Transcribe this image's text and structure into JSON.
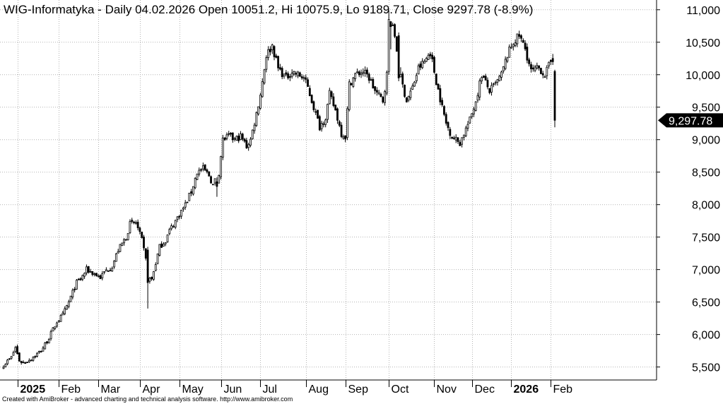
{
  "chart_data": {
    "type": "candlestick",
    "title": "WIG-Informatyka - Daily 04.02.2026 Open 10051.2, Hi 10075.9, Lo 9189.71, Close 9297.78 (-8.9%)",
    "footer": "Created with AmiBroker - advanced charting and technical analysis software. http://www.amibroker.com",
    "ylim": [
      5300,
      11150
    ],
    "y_ticks": [
      {
        "value": 5500,
        "label": "5,500"
      },
      {
        "value": 6000,
        "label": "6,000"
      },
      {
        "value": 6500,
        "label": "6,500"
      },
      {
        "value": 7000,
        "label": "7,000"
      },
      {
        "value": 7500,
        "label": "7,500"
      },
      {
        "value": 8000,
        "label": "8,000"
      },
      {
        "value": 8500,
        "label": "8,500"
      },
      {
        "value": 9000,
        "label": "9,000"
      },
      {
        "value": 9500,
        "label": "9,500"
      },
      {
        "value": 10000,
        "label": "10,000"
      },
      {
        "value": 10500,
        "label": "10,500"
      },
      {
        "value": 11000,
        "label": "11,000"
      }
    ],
    "x_ticks": [
      {
        "date": "2025-01-02",
        "label": "2025",
        "bold": true
      },
      {
        "date": "2025-02-03",
        "label": "Feb",
        "bold": false
      },
      {
        "date": "2025-03-03",
        "label": "Mar",
        "bold": false
      },
      {
        "date": "2025-04-01",
        "label": "Apr",
        "bold": false
      },
      {
        "date": "2025-05-02",
        "label": "May",
        "bold": false
      },
      {
        "date": "2025-06-02",
        "label": "Jun",
        "bold": false
      },
      {
        "date": "2025-07-01",
        "label": "Jul",
        "bold": false
      },
      {
        "date": "2025-08-01",
        "label": "Aug",
        "bold": false
      },
      {
        "date": "2025-09-01",
        "label": "Sep",
        "bold": false
      },
      {
        "date": "2025-10-01",
        "label": "Oct",
        "bold": false
      },
      {
        "date": "2025-11-03",
        "label": "Nov",
        "bold": false
      },
      {
        "date": "2025-12-01",
        "label": "Dec",
        "bold": false
      },
      {
        "date": "2026-01-02",
        "label": "2026",
        "bold": true
      },
      {
        "date": "2026-02-02",
        "label": "Feb",
        "bold": false
      }
    ],
    "last_close": {
      "value": 9297.78,
      "label": "9,297.78"
    },
    "series": [
      {
        "price_path": [
          [
            "2024-12-23",
            5530
          ],
          [
            "2024-12-27",
            5650
          ],
          [
            "2024-12-31",
            5800
          ],
          [
            "2025-01-03",
            5600
          ],
          [
            "2025-01-08",
            5560
          ],
          [
            "2025-01-14",
            5630
          ],
          [
            "2025-01-21",
            5750
          ],
          [
            "2025-01-27",
            5950
          ],
          [
            "2025-01-31",
            6200
          ],
          [
            "2025-02-05",
            6300
          ],
          [
            "2025-02-10",
            6500
          ],
          [
            "2025-02-14",
            6800
          ],
          [
            "2025-02-18",
            6850
          ],
          [
            "2025-02-21",
            7000
          ],
          [
            "2025-02-26",
            6950
          ],
          [
            "2025-03-04",
            6880
          ],
          [
            "2025-03-07",
            6990
          ],
          [
            "2025-03-12",
            7050
          ],
          [
            "2025-03-17",
            7300
          ],
          [
            "2025-03-21",
            7500
          ],
          [
            "2025-03-25",
            7700
          ],
          [
            "2025-03-28",
            7720
          ],
          [
            "2025-04-02",
            7450
          ],
          [
            "2025-04-04",
            7150
          ],
          [
            "2025-04-07",
            6850
          ],
          [
            "2025-04-09",
            6850
          ],
          [
            "2025-04-11",
            7100
          ],
          [
            "2025-04-15",
            7350
          ],
          [
            "2025-04-18",
            7450
          ],
          [
            "2025-04-24",
            7600
          ],
          [
            "2025-04-30",
            7800
          ],
          [
            "2025-05-07",
            8000
          ],
          [
            "2025-05-12",
            8200
          ],
          [
            "2025-05-15",
            8500
          ],
          [
            "2025-05-20",
            8550
          ],
          [
            "2025-05-23",
            8450
          ],
          [
            "2025-05-27",
            8300
          ],
          [
            "2025-05-30",
            8500
          ],
          [
            "2025-06-03",
            9000
          ],
          [
            "2025-06-06",
            9050
          ],
          [
            "2025-06-11",
            9000
          ],
          [
            "2025-06-16",
            9050
          ],
          [
            "2025-06-20",
            8900
          ],
          [
            "2025-06-24",
            9000
          ],
          [
            "2025-06-27",
            9400
          ],
          [
            "2025-07-01",
            9700
          ],
          [
            "2025-07-04",
            10300
          ],
          [
            "2025-07-09",
            10450
          ],
          [
            "2025-07-14",
            10100
          ],
          [
            "2025-07-18",
            9950
          ],
          [
            "2025-07-23",
            10050
          ],
          [
            "2025-07-28",
            10000
          ],
          [
            "2025-07-31",
            9950
          ],
          [
            "2025-08-04",
            9800
          ],
          [
            "2025-08-07",
            9500
          ],
          [
            "2025-08-12",
            9200
          ],
          [
            "2025-08-15",
            9350
          ],
          [
            "2025-08-20",
            9700
          ],
          [
            "2025-08-25",
            9450
          ],
          [
            "2025-08-28",
            9100
          ],
          [
            "2025-09-01",
            9050
          ],
          [
            "2025-09-03",
            9850
          ],
          [
            "2025-09-08",
            10000
          ],
          [
            "2025-09-12",
            10050
          ],
          [
            "2025-09-17",
            9950
          ],
          [
            "2025-09-22",
            9750
          ],
          [
            "2025-09-26",
            9600
          ],
          [
            "2025-09-30",
            10000
          ],
          [
            "2025-10-02",
            10800
          ],
          [
            "2025-10-06",
            10600
          ],
          [
            "2025-10-09",
            9950
          ],
          [
            "2025-10-14",
            9600
          ],
          [
            "2025-10-17",
            9800
          ],
          [
            "2025-10-22",
            10100
          ],
          [
            "2025-10-27",
            10200
          ],
          [
            "2025-10-30",
            10350
          ],
          [
            "2025-11-04",
            9900
          ],
          [
            "2025-11-07",
            9500
          ],
          [
            "2025-11-12",
            9250
          ],
          [
            "2025-11-17",
            9050
          ],
          [
            "2025-11-21",
            8950
          ],
          [
            "2025-11-25",
            9100
          ],
          [
            "2025-11-28",
            9300
          ],
          [
            "2025-12-03",
            9600
          ],
          [
            "2025-12-08",
            10000
          ],
          [
            "2025-12-12",
            9750
          ],
          [
            "2025-12-17",
            9850
          ],
          [
            "2025-12-22",
            10000
          ],
          [
            "2025-12-30",
            10300
          ],
          [
            "2026-01-05",
            10500
          ],
          [
            "2026-01-09",
            10600
          ],
          [
            "2026-01-14",
            10400
          ],
          [
            "2026-01-19",
            10050
          ],
          [
            "2026-01-23",
            10100
          ],
          [
            "2026-01-28",
            10000
          ],
          [
            "2026-02-02",
            10200
          ],
          [
            "2026-02-03",
            10200
          ],
          [
            "2026-02-04",
            9297.78
          ]
        ],
        "notable_bars": [
          {
            "date": "2025-04-07",
            "open": 7300,
            "high": 7350,
            "low": 6400,
            "close": 6800
          },
          {
            "date": "2025-05-29",
            "open": 8350,
            "high": 8420,
            "low": 8120,
            "close": 8280
          },
          {
            "date": "2025-10-01",
            "open": 10050,
            "high": 10990,
            "low": 10000,
            "close": 10850
          },
          {
            "date": "2025-10-08",
            "open": 10600,
            "high": 10650,
            "low": 9900,
            "close": 9950
          },
          {
            "date": "2026-02-03",
            "open": 10250,
            "high": 10320,
            "low": 10150,
            "close": 10200
          },
          {
            "date": "2026-02-04",
            "open": 10051.2,
            "high": 10075.9,
            "low": 9189.71,
            "close": 9297.78
          }
        ]
      }
    ]
  }
}
